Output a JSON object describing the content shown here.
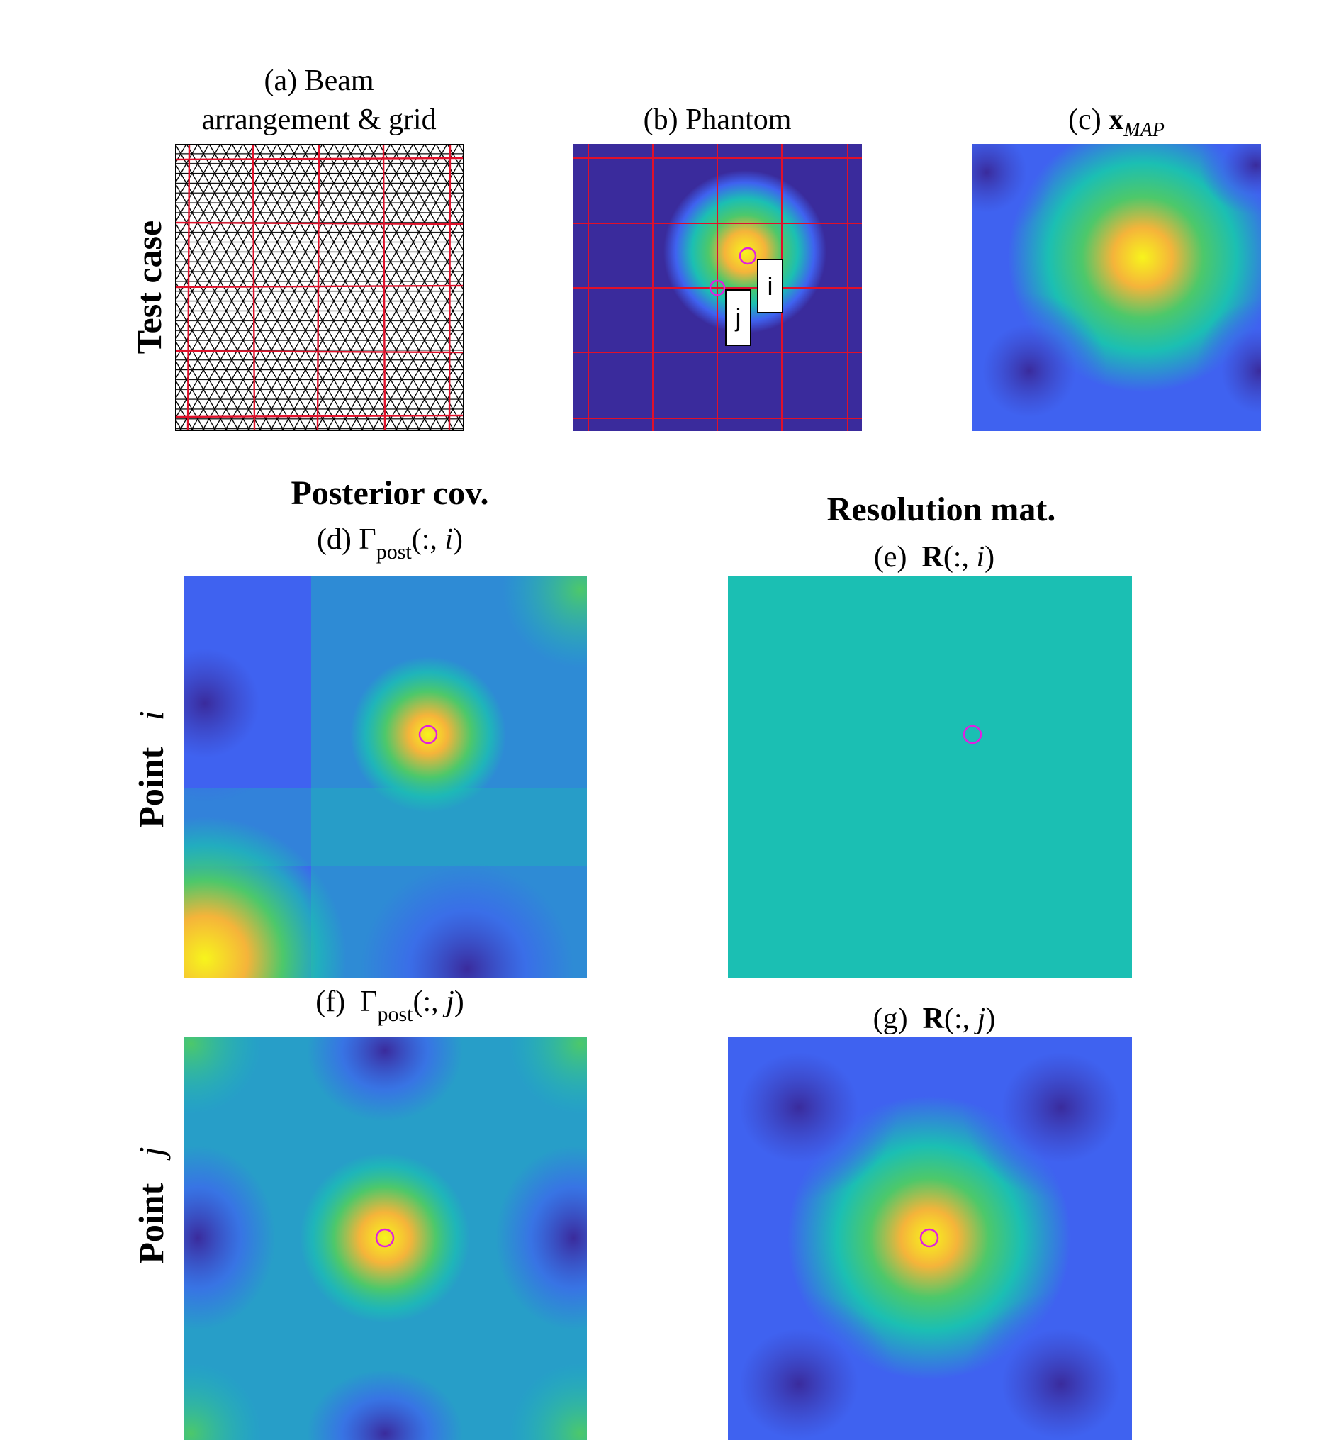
{
  "row_labels": {
    "test_case": "Test case",
    "point_i": "Point",
    "point_i_var": "i",
    "point_j": "Point",
    "point_j_var": "j"
  },
  "headers": {
    "posterior": "Posterior cov.",
    "resolution": "Resolution mat."
  },
  "panels": {
    "a": {
      "title_line1": "(a) Beam",
      "title_line2": "arrangement & grid"
    },
    "b": {
      "title": "(b) Phantom",
      "label_i": "i",
      "label_j": "j"
    },
    "c": {
      "prefix": "(c)",
      "bold": "x",
      "sub": "MAP"
    },
    "d": {
      "prefix": "(d)",
      "symbol": "Γ",
      "sub": "post",
      "args_open": "(:, ",
      "var": "i",
      "args_close": ")"
    },
    "e": {
      "prefix": "(e)",
      "symbol": "R",
      "args_open": "(:, ",
      "var": "i",
      "args_close": ")"
    },
    "f": {
      "prefix": "(f)",
      "symbol": "Γ",
      "sub": "post",
      "args_open": "(:, ",
      "var": "j",
      "args_close": ")"
    },
    "g": {
      "prefix": "(g)",
      "symbol": "R",
      "args_open": "(:, ",
      "var": "j",
      "args_close": ")"
    }
  },
  "colors": {
    "dark": "#3a2b9c",
    "blue": "#3f62f0",
    "teal": "#1bbfb3",
    "green": "#4dc86a",
    "orange": "#f5b43a",
    "yellow": "#f7f41c",
    "grid_red": "#e0102a",
    "marker": "#e020e0"
  }
}
